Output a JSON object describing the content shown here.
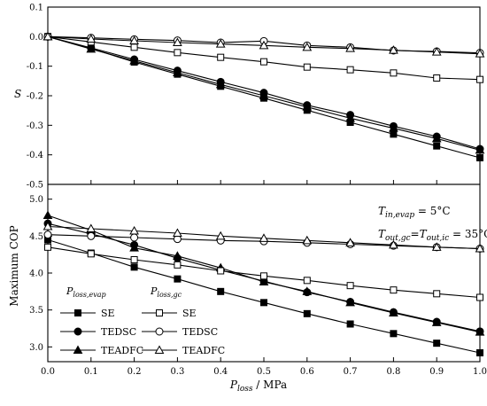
{
  "chart_data": [
    {
      "type": "line",
      "panel": "top",
      "ylabel": "S",
      "xlabel": "",
      "x": [
        0.0,
        0.1,
        0.2,
        0.3,
        0.4,
        0.5,
        0.6,
        0.7,
        0.8,
        0.9,
        1.0
      ],
      "xlim": [
        0.0,
        1.0
      ],
      "ylim": [
        -0.5,
        0.1
      ],
      "yticks": [
        "0.1",
        "0.0",
        "-0.1",
        "-0.2",
        "-0.3",
        "-0.4",
        "-0.5"
      ],
      "ytick_values": [
        0.1,
        0.0,
        -0.1,
        -0.2,
        -0.3,
        -0.4,
        -0.5
      ],
      "xtick_labels": [
        "0.0",
        "0.1",
        "0.2",
        "0.3",
        "0.4",
        "0.5",
        "0.6",
        "0.7",
        "0.8",
        "0.9",
        "1.0"
      ],
      "grid": false,
      "series": [
        {
          "key": "se_evap",
          "marker": "square-filled",
          "values": [
            0.0,
            -0.04,
            -0.086,
            -0.127,
            -0.168,
            -0.208,
            -0.249,
            -0.29,
            -0.33,
            -0.37,
            -0.41
          ]
        },
        {
          "key": "tedsc_evap",
          "marker": "circle-filled",
          "values": [
            0.0,
            -0.038,
            -0.077,
            -0.115,
            -0.153,
            -0.19,
            -0.232,
            -0.265,
            -0.303,
            -0.338,
            -0.38
          ]
        },
        {
          "key": "teadfc_evap",
          "marker": "triangle-filled",
          "values": [
            0.0,
            -0.042,
            -0.082,
            -0.122,
            -0.162,
            -0.2,
            -0.238,
            -0.276,
            -0.31,
            -0.345,
            -0.384
          ]
        },
        {
          "key": "se_gc",
          "marker": "square-open",
          "values": [
            0.0,
            -0.018,
            -0.036,
            -0.054,
            -0.07,
            -0.085,
            -0.103,
            -0.112,
            -0.123,
            -0.14,
            -0.145
          ]
        },
        {
          "key": "tedsc_gc",
          "marker": "circle-open",
          "values": [
            0.0,
            -0.004,
            -0.009,
            -0.013,
            -0.02,
            -0.015,
            -0.03,
            -0.036,
            -0.047,
            -0.05,
            -0.055
          ]
        },
        {
          "key": "teadfc_gc",
          "marker": "triangle-open",
          "values": [
            0.0,
            -0.008,
            -0.014,
            -0.02,
            -0.025,
            -0.03,
            -0.036,
            -0.04,
            -0.046,
            -0.052,
            -0.058
          ]
        }
      ]
    },
    {
      "type": "line",
      "panel": "bottom",
      "ylabel": "Maximum COP",
      "xlabel": "P_loss / MPa",
      "x": [
        0.0,
        0.1,
        0.2,
        0.3,
        0.4,
        0.5,
        0.6,
        0.7,
        0.8,
        0.9,
        1.0
      ],
      "xlim": [
        0.0,
        1.0
      ],
      "ylim": [
        2.8,
        5.2
      ],
      "yticks": [
        "5.0",
        "4.5",
        "4.0",
        "3.5",
        "3.0"
      ],
      "ytick_values": [
        5.0,
        4.5,
        4.0,
        3.5,
        3.0
      ],
      "xtick_labels": [
        "0.0",
        "0.1",
        "0.2",
        "0.3",
        "0.4",
        "0.5",
        "0.6",
        "0.7",
        "0.8",
        "0.9",
        "1.0"
      ],
      "grid": false,
      "series": [
        {
          "key": "se_evap",
          "marker": "square-filled",
          "values": [
            4.45,
            4.27,
            4.08,
            3.92,
            3.75,
            3.6,
            3.45,
            3.31,
            3.18,
            3.05,
            2.92
          ]
        },
        {
          "key": "tedsc_evap",
          "marker": "circle-filled",
          "values": [
            4.67,
            4.53,
            4.38,
            4.2,
            4.04,
            3.89,
            3.74,
            3.61,
            3.47,
            3.34,
            3.21
          ]
        },
        {
          "key": "teadfc_evap",
          "marker": "triangle-filled",
          "values": [
            4.78,
            4.58,
            4.34,
            4.23,
            4.07,
            3.88,
            3.75,
            3.6,
            3.46,
            3.33,
            3.2
          ]
        },
        {
          "key": "se_gc",
          "marker": "square-open",
          "values": [
            4.35,
            4.26,
            4.18,
            4.11,
            4.03,
            3.96,
            3.9,
            3.83,
            3.77,
            3.72,
            3.67
          ]
        },
        {
          "key": "tedsc_gc",
          "marker": "circle-open",
          "values": [
            4.52,
            4.5,
            4.48,
            4.46,
            4.44,
            4.43,
            4.41,
            4.39,
            4.37,
            4.35,
            4.33
          ]
        },
        {
          "key": "teadfc_gc",
          "marker": "triangle-open",
          "values": [
            4.63,
            4.6,
            4.57,
            4.54,
            4.5,
            4.47,
            4.44,
            4.41,
            4.38,
            4.35,
            4.33
          ]
        }
      ]
    }
  ],
  "legend": {
    "evap_header_main": "P",
    "evap_header_sub": "loss,evap",
    "gc_header_main": "P",
    "gc_header_sub": "loss,gc",
    "entries": [
      {
        "left_label": "SE",
        "right_label": "SE"
      },
      {
        "left_label": "TEDSC",
        "right_label": "TEDSC"
      },
      {
        "left_label": "TEADFC",
        "right_label": "TEADFC"
      }
    ]
  },
  "annotations": {
    "line1_main": "T",
    "line1_sub": "in,evap",
    "line1_value": " = 5°C",
    "line2_part1": "T",
    "line2_sub1": "out,gc",
    "line2_eq": "=",
    "line2_part2": "T",
    "line2_sub2": "out,ic",
    "line2_value": " = 35°C"
  },
  "axis_titles": {
    "top_y": "S",
    "bottom_y": "Maximum COP",
    "x_main": "P",
    "x_sub": "loss",
    "x_tail": " / MPa"
  },
  "colors": {
    "ink": "#000000",
    "background": "#ffffff"
  }
}
